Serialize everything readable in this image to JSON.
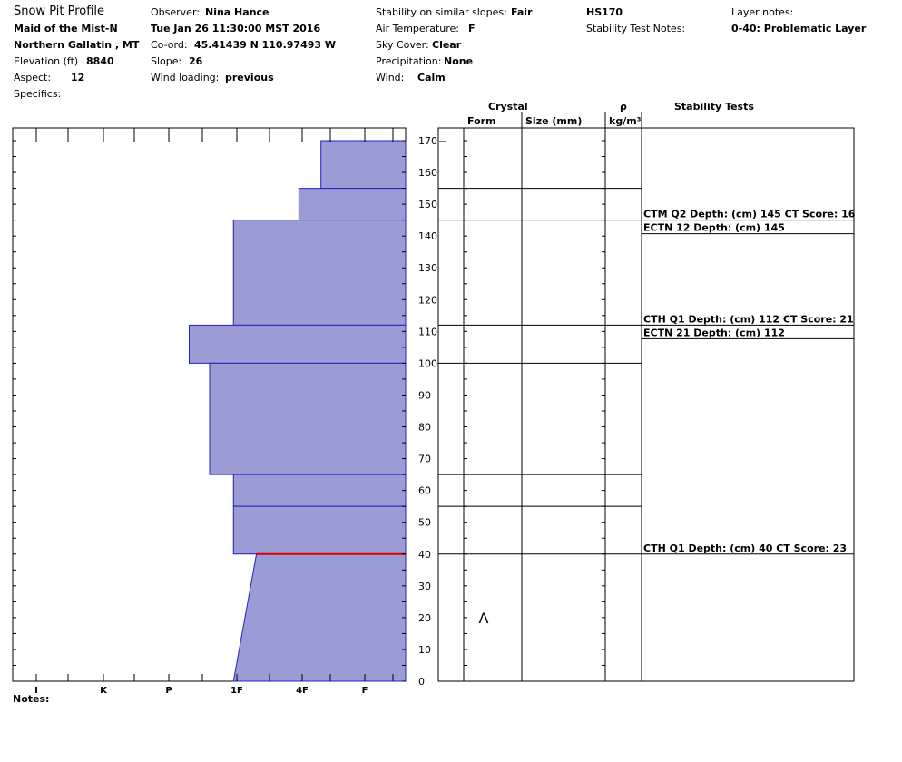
{
  "header": {
    "title": "Snow Pit Profile",
    "location": "Maid of the Mist-N",
    "range": "Northern Gallatin , MT",
    "elevation_label": "Elevation (ft)",
    "elevation_value": "8840",
    "aspect_label": "Aspect:",
    "aspect_value": "12",
    "specifics_label": "Specifics:",
    "observer_label": "Observer:",
    "observer_value": "Nina Hance",
    "datetime": "Tue Jan 26 11:30:00 MST 2016",
    "coord_label": "Co-ord:",
    "coord_value": "45.41439 N 110.97493 W",
    "slope_label": "Slope:",
    "slope_value": "26",
    "wind_loading_label": "Wind loading:",
    "wind_loading_value": "previous",
    "stability_label": "Stability on similar slopes:",
    "stability_value": "Fair",
    "air_temp_label": "Air Temperature:",
    "air_temp_value": "F",
    "sky_label": "Sky Cover:",
    "sky_value": "Clear",
    "precip_label": "Precipitation:",
    "precip_value": "None",
    "wind_label": "Wind:",
    "wind_value": "Calm",
    "hs": "HS170",
    "stability_test_notes_label": "Stability Test Notes:",
    "layer_notes_label": "Layer notes:",
    "layer_notes_value": "0-40: Problematic Layer"
  },
  "columns": {
    "crystal": "Crystal",
    "form": "Form",
    "size": "Size (mm)",
    "rho": "ρ",
    "density_unit": "kg/m³",
    "stability_tests": "Stability Tests"
  },
  "notes_label": "Notes:",
  "chart_data": {
    "type": "bar",
    "y_axis": {
      "min": 0,
      "max": 170,
      "step": 10,
      "ticks": [
        0,
        10,
        20,
        30,
        40,
        50,
        60,
        70,
        80,
        90,
        100,
        110,
        120,
        130,
        140,
        150,
        160,
        170
      ]
    },
    "hardness_labels": [
      "I",
      "K",
      "P",
      "1F",
      "4F",
      "F"
    ],
    "hardness_steps": [
      {
        "label": "I",
        "value": 1
      },
      {
        "label": "K",
        "value": 2
      },
      {
        "label": "P",
        "value": 3
      },
      {
        "label": "1F",
        "value": 4
      },
      {
        "label": "4F",
        "value": 5
      },
      {
        "label": "F",
        "value": 6
      }
    ],
    "layers": [
      {
        "bottom": 155,
        "top": 170,
        "hardness_bottom": 5.3,
        "hardness_top": 5.3
      },
      {
        "bottom": 145,
        "top": 155,
        "hardness_bottom": 4.95,
        "hardness_top": 4.95
      },
      {
        "bottom": 112,
        "top": 145,
        "hardness_bottom": 3.95,
        "hardness_top": 3.95
      },
      {
        "bottom": 100,
        "top": 112,
        "hardness_bottom": 3.3,
        "hardness_top": 3.3
      },
      {
        "bottom": 65,
        "top": 100,
        "hardness_bottom": 3.6,
        "hardness_top": 3.6
      },
      {
        "bottom": 55,
        "top": 65,
        "hardness_bottom": 3.95,
        "hardness_top": 3.95
      },
      {
        "bottom": 40,
        "top": 55,
        "hardness_bottom": 3.95,
        "hardness_top": 3.95
      },
      {
        "bottom": 0,
        "top": 40,
        "hardness_bottom": 3.95,
        "hardness_top": 4.3
      }
    ],
    "critical_layer": 40,
    "crystal_boundaries": [
      155,
      145,
      112,
      100,
      65,
      55,
      40
    ],
    "crystal_symbols": [
      {
        "depth": 20,
        "symbol": "Λ"
      }
    ],
    "stability_tests": [
      {
        "depth": 145,
        "label": "CTM Q2 Depth: (cm) 145 CT Score: 16"
      },
      {
        "depth": 145,
        "label": "ECTN 12   Depth: (cm) 145"
      },
      {
        "depth": 112,
        "label": "CTH Q1 Depth: (cm) 112 CT Score: 21"
      },
      {
        "depth": 112,
        "label": "ECTN 21   Depth: (cm) 112"
      },
      {
        "depth": 40,
        "label": "CTH Q1 Depth: (cm) 40 CT Score: 23"
      }
    ],
    "fill_color": "#9b9bd6",
    "edge_color": "#2020c8",
    "critical_color": "#dd0000"
  }
}
